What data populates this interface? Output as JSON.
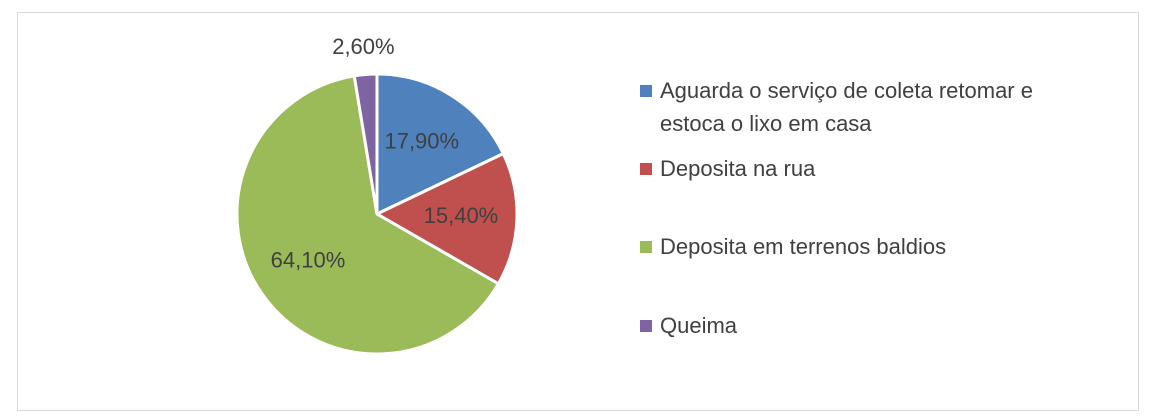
{
  "chart_data": {
    "type": "pie",
    "categories": [
      "Aguarda o serviço de coleta retomar e estoca o lixo em casa",
      "Deposita na rua",
      "Deposita em terrenos baldios",
      "Queima"
    ],
    "values": [
      17.9,
      15.4,
      64.1,
      2.6
    ],
    "value_labels": [
      "17,90%",
      "15,40%",
      "64,10%",
      "2,60%"
    ],
    "colors": [
      "#4f81bd",
      "#c0504d",
      "#9bbb59",
      "#8064a2"
    ],
    "legend": "right"
  }
}
